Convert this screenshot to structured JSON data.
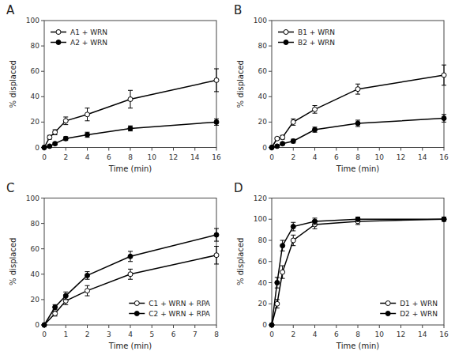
{
  "chart_data": [
    {
      "type": "line",
      "title": "A",
      "xlabel": "Time (min)",
      "ylabel": "% displaced",
      "x": [
        0,
        0.5,
        1,
        2,
        4,
        8,
        16
      ],
      "xlim": [
        0,
        16
      ],
      "ylim": [
        0,
        100
      ],
      "xticks": [
        0,
        2,
        4,
        6,
        8,
        10,
        12,
        14,
        16
      ],
      "yticks": [
        0,
        20,
        40,
        60,
        80,
        100
      ],
      "legend": "upper left",
      "series": [
        {
          "name": "A1 + WRN",
          "values": [
            0,
            8,
            12,
            21,
            26,
            38,
            53
          ],
          "errors": [
            0,
            1.5,
            2,
            3,
            5,
            7,
            9
          ],
          "color": "#000000",
          "marker": "circle-open"
        },
        {
          "name": "A2 + WRN",
          "values": [
            0,
            1,
            3,
            7,
            10,
            15,
            20
          ],
          "errors": [
            0,
            0.5,
            1,
            1.5,
            2,
            2,
            2.5
          ],
          "color": "#000000",
          "marker": "circle"
        }
      ]
    },
    {
      "type": "line",
      "title": "B",
      "xlabel": "Time (min)",
      "ylabel": "% displaced",
      "x": [
        0,
        0.5,
        1,
        2,
        4,
        8,
        16
      ],
      "xlim": [
        0,
        16
      ],
      "ylim": [
        0,
        100
      ],
      "xticks": [
        0,
        2,
        4,
        6,
        8,
        10,
        12,
        14,
        16
      ],
      "yticks": [
        0,
        20,
        40,
        60,
        80,
        100
      ],
      "legend": "upper left",
      "series": [
        {
          "name": "B1 + WRN",
          "values": [
            0,
            7,
            8,
            20,
            30,
            46,
            57
          ],
          "errors": [
            0,
            1,
            1.5,
            2.5,
            3,
            4,
            8
          ],
          "color": "#000000",
          "marker": "circle-open"
        },
        {
          "name": "B2 + WRN",
          "values": [
            0,
            1,
            3,
            5,
            14,
            19,
            23
          ],
          "errors": [
            0,
            0.5,
            1,
            1.5,
            2,
            2.5,
            3
          ],
          "color": "#000000",
          "marker": "circle"
        }
      ]
    },
    {
      "type": "line",
      "title": "C",
      "xlabel": "Time (min)",
      "ylabel": "% displaced",
      "x": [
        0,
        0.5,
        1,
        2,
        4,
        8
      ],
      "xlim": [
        0,
        8
      ],
      "ylim": [
        0,
        100
      ],
      "xticks": [
        0,
        1,
        2,
        3,
        4,
        5,
        6,
        7,
        8
      ],
      "yticks": [
        0,
        20,
        40,
        60,
        80,
        100
      ],
      "legend": "lower right",
      "series": [
        {
          "name": "C1 + WRN + RPA",
          "values": [
            0,
            9,
            19,
            27,
            40,
            55
          ],
          "errors": [
            0,
            2,
            3,
            4,
            4,
            7
          ],
          "color": "#000000",
          "marker": "circle-open"
        },
        {
          "name": "C2 + WRN + RPA",
          "values": [
            0,
            14,
            23,
            39,
            54,
            71
          ],
          "errors": [
            0,
            2,
            3,
            3,
            4,
            5
          ],
          "color": "#000000",
          "marker": "circle"
        }
      ]
    },
    {
      "type": "line",
      "title": "D",
      "xlabel": "Time (min)",
      "ylabel": "% displaced",
      "x": [
        0,
        0.5,
        1,
        2,
        4,
        8,
        16
      ],
      "xlim": [
        0,
        16
      ],
      "ylim": [
        0,
        120
      ],
      "xticks": [
        0,
        2,
        4,
        6,
        8,
        10,
        12,
        14,
        16
      ],
      "yticks": [
        0,
        20,
        40,
        60,
        80,
        100,
        120
      ],
      "legend": "lower right",
      "series": [
        {
          "name": "D1 + WRN",
          "values": [
            0,
            20,
            50,
            80,
            95,
            98,
            100
          ],
          "errors": [
            0,
            4,
            6,
            5,
            4,
            3,
            2
          ],
          "color": "#000000",
          "marker": "circle-open"
        },
        {
          "name": "D2 + WRN",
          "values": [
            0,
            40,
            75,
            93,
            98,
            100,
            100
          ],
          "errors": [
            0,
            5,
            5,
            4,
            3,
            2,
            1
          ],
          "color": "#000000",
          "marker": "circle"
        }
      ]
    }
  ]
}
